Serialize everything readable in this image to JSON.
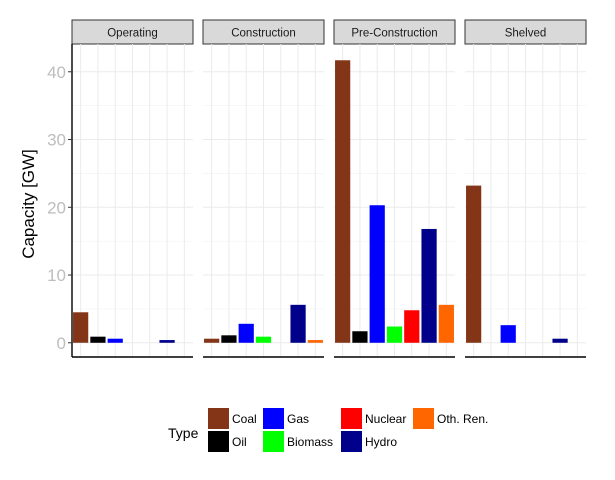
{
  "chart_data": {
    "type": "bar",
    "facets": [
      "Operating",
      "Construction",
      "Pre-Construction",
      "Shelved"
    ],
    "categories": [
      "Coal",
      "Oil",
      "Gas",
      "Biomass",
      "Nuclear",
      "Hydro",
      "Oth. Ren."
    ],
    "colors": {
      "Coal": "#843517",
      "Oil": "#000000",
      "Gas": "#0000ff",
      "Biomass": "#00ff00",
      "Nuclear": "#ff0000",
      "Hydro": "#00008b",
      "Oth. Ren.": "#ff6600"
    },
    "series": [
      {
        "facet": "Operating",
        "values": [
          4.5,
          0.9,
          0.6,
          0,
          0,
          0.4,
          0
        ]
      },
      {
        "facet": "Construction",
        "values": [
          0.6,
          1.1,
          2.8,
          0.9,
          0,
          5.6,
          0.4
        ]
      },
      {
        "facet": "Pre-Construction",
        "values": [
          41.7,
          1.7,
          20.3,
          2.4,
          4.8,
          16.8,
          5.6
        ]
      },
      {
        "facet": "Shelved",
        "values": [
          23.2,
          0,
          2.6,
          0,
          0,
          0.6,
          0
        ]
      }
    ],
    "ylabel": "Capacity [GW]",
    "xlabel": "",
    "yticks": [
      "0",
      "10",
      "20",
      "30",
      "40"
    ],
    "ylim": [
      -2.1,
      44.1
    ],
    "grid": true,
    "legend": {
      "title": "Type",
      "position": "bottom",
      "items": [
        "Coal",
        "Oil",
        "Gas",
        "Biomass",
        "Nuclear",
        "Hydro",
        "Oth. Ren."
      ]
    }
  }
}
